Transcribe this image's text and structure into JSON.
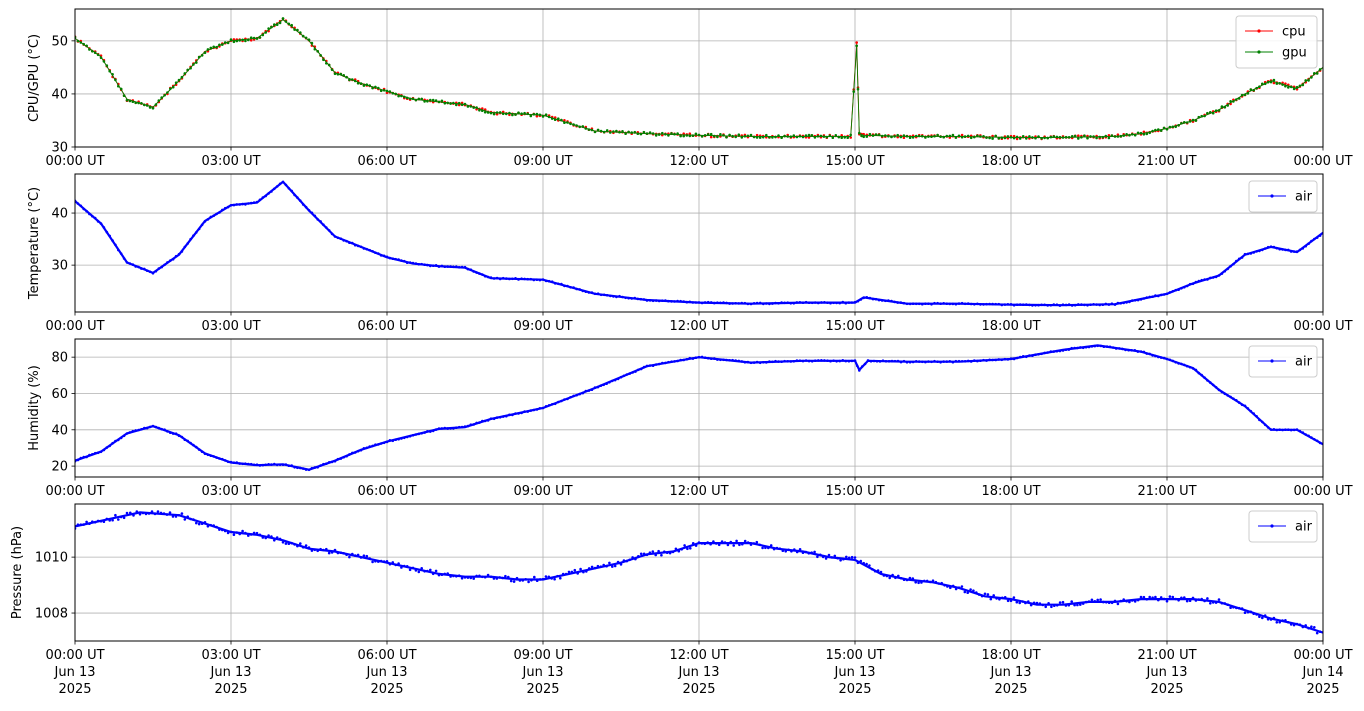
{
  "x_tick_labels": [
    "00:00 UT",
    "03:00 UT",
    "06:00 UT",
    "09:00 UT",
    "12:00 UT",
    "15:00 UT",
    "18:00 UT",
    "21:00 UT",
    "00:00 UT"
  ],
  "x_tick_dates": [
    "Jun 13",
    "Jun 13",
    "Jun 13",
    "Jun 13",
    "Jun 13",
    "Jun 13",
    "Jun 13",
    "Jun 13",
    "Jun 14"
  ],
  "x_tick_years": [
    "2025",
    "2025",
    "2025",
    "2025",
    "2025",
    "2025",
    "2025",
    "2025",
    "2025"
  ],
  "chart_data": [
    {
      "type": "line",
      "ylabel": "CPU/GPU (°C)",
      "ylim": [
        30,
        56
      ],
      "yticks": [
        30,
        40,
        50
      ],
      "grid": true,
      "legend_position": "top-right",
      "x": [
        "2025-06-13T00:00",
        "2025-06-13T00:30",
        "2025-06-13T01:00",
        "2025-06-13T01:30",
        "2025-06-13T02:00",
        "2025-06-13T02:30",
        "2025-06-13T03:00",
        "2025-06-13T03:30",
        "2025-06-13T04:00",
        "2025-06-13T04:30",
        "2025-06-13T05:00",
        "2025-06-13T05:30",
        "2025-06-13T06:00",
        "2025-06-13T06:30",
        "2025-06-13T07:00",
        "2025-06-13T07:30",
        "2025-06-13T08:00",
        "2025-06-13T09:00",
        "2025-06-13T10:00",
        "2025-06-13T11:00",
        "2025-06-13T12:00",
        "2025-06-13T13:00",
        "2025-06-13T14:00",
        "2025-06-13T14:55",
        "2025-06-13T15:02",
        "2025-06-13T15:05",
        "2025-06-13T15:10",
        "2025-06-13T16:00",
        "2025-06-13T17:00",
        "2025-06-13T18:00",
        "2025-06-13T19:00",
        "2025-06-13T20:00",
        "2025-06-13T20:30",
        "2025-06-13T21:00",
        "2025-06-13T21:30",
        "2025-06-13T22:00",
        "2025-06-13T22:30",
        "2025-06-13T23:00",
        "2025-06-13T23:30",
        "2025-06-14T00:00"
      ],
      "series": [
        {
          "name": "cpu",
          "color": "#ff0000",
          "values": [
            50.5,
            47,
            39,
            37.5,
            42.5,
            48,
            50,
            50.5,
            54,
            50,
            44,
            42,
            40.5,
            39,
            38.5,
            38,
            36.5,
            36,
            33,
            32.5,
            32.2,
            32,
            32,
            32,
            49.5,
            32.5,
            32.2,
            32,
            32,
            31.8,
            31.8,
            32,
            32.5,
            33.5,
            35,
            37,
            40,
            42.5,
            41,
            45
          ]
        },
        {
          "name": "gpu",
          "color": "#008000",
          "values": [
            50.5,
            47,
            39,
            37.5,
            42.5,
            48,
            50,
            50.5,
            54,
            50,
            44,
            42,
            40.5,
            39,
            38.5,
            38,
            36.5,
            36,
            33,
            32.5,
            32.2,
            32,
            32,
            32,
            49,
            32.5,
            32.2,
            32,
            32,
            31.8,
            31.8,
            32,
            32.5,
            33.5,
            35,
            37,
            40,
            42.5,
            41,
            45
          ]
        }
      ]
    },
    {
      "type": "line",
      "ylabel": "Temperature (°C)",
      "ylim": [
        21,
        47.5
      ],
      "yticks": [
        30,
        40
      ],
      "grid": true,
      "legend_position": "top-right",
      "x": [
        "2025-06-13T00:00",
        "2025-06-13T00:30",
        "2025-06-13T01:00",
        "2025-06-13T01:30",
        "2025-06-13T02:00",
        "2025-06-13T02:30",
        "2025-06-13T03:00",
        "2025-06-13T03:30",
        "2025-06-13T04:00",
        "2025-06-13T04:30",
        "2025-06-13T05:00",
        "2025-06-13T05:30",
        "2025-06-13T06:00",
        "2025-06-13T06:30",
        "2025-06-13T07:00",
        "2025-06-13T07:30",
        "2025-06-13T08:00",
        "2025-06-13T09:00",
        "2025-06-13T10:00",
        "2025-06-13T11:00",
        "2025-06-13T12:00",
        "2025-06-13T13:00",
        "2025-06-13T14:00",
        "2025-06-13T15:00",
        "2025-06-13T15:10",
        "2025-06-13T16:00",
        "2025-06-13T17:00",
        "2025-06-13T18:00",
        "2025-06-13T19:00",
        "2025-06-13T20:00",
        "2025-06-13T20:30",
        "2025-06-13T21:00",
        "2025-06-13T21:30",
        "2025-06-13T22:00",
        "2025-06-13T22:30",
        "2025-06-13T23:00",
        "2025-06-13T23:30",
        "2025-06-14T00:00"
      ],
      "series": [
        {
          "name": "air",
          "color": "#0000ff",
          "values": [
            42.3,
            38,
            30.5,
            28.5,
            32,
            38.5,
            41.5,
            42,
            46,
            40.5,
            35.5,
            33.5,
            31.5,
            30.3,
            29.8,
            29.5,
            27.5,
            27.2,
            24.5,
            23.3,
            22.8,
            22.6,
            22.8,
            22.8,
            23.8,
            22.6,
            22.6,
            22.4,
            22.3,
            22.5,
            23.5,
            24.5,
            26.5,
            28,
            32,
            33.5,
            32.5,
            36.2
          ]
        }
      ]
    },
    {
      "type": "line",
      "ylabel": "Humidity (%)",
      "ylim": [
        14,
        90
      ],
      "yticks": [
        20,
        40,
        60,
        80
      ],
      "grid": true,
      "legend_position": "top-right",
      "x": [
        "2025-06-13T00:00",
        "2025-06-13T00:30",
        "2025-06-13T01:00",
        "2025-06-13T01:30",
        "2025-06-13T02:00",
        "2025-06-13T02:30",
        "2025-06-13T03:00",
        "2025-06-13T03:30",
        "2025-06-13T04:00",
        "2025-06-13T04:30",
        "2025-06-13T05:00",
        "2025-06-13T05:30",
        "2025-06-13T06:00",
        "2025-06-13T06:30",
        "2025-06-13T07:00",
        "2025-06-13T07:30",
        "2025-06-13T08:00",
        "2025-06-13T09:00",
        "2025-06-13T10:00",
        "2025-06-13T10:30",
        "2025-06-13T11:00",
        "2025-06-13T12:00",
        "2025-06-13T13:00",
        "2025-06-13T14:00",
        "2025-06-13T15:00",
        "2025-06-13T15:05",
        "2025-06-13T15:15",
        "2025-06-13T16:00",
        "2025-06-13T17:00",
        "2025-06-13T18:00",
        "2025-06-13T19:00",
        "2025-06-13T19:40",
        "2025-06-13T20:30",
        "2025-06-13T21:00",
        "2025-06-13T21:30",
        "2025-06-13T22:00",
        "2025-06-13T22:30",
        "2025-06-13T23:00",
        "2025-06-13T23:30",
        "2025-06-14T00:00"
      ],
      "series": [
        {
          "name": "air",
          "color": "#0000ff",
          "values": [
            23,
            28,
            38,
            42,
            37,
            27,
            22,
            20.5,
            21,
            18,
            23,
            29,
            33.5,
            37,
            40.5,
            41.5,
            46,
            52,
            63,
            69,
            75,
            80,
            77,
            78,
            78,
            73,
            78,
            77.5,
            77.5,
            79,
            84,
            86.5,
            83,
            79,
            74,
            62,
            53,
            40,
            40,
            32
          ]
        }
      ]
    },
    {
      "type": "line",
      "ylabel": "Pressure (hPa)",
      "ylim": [
        1007,
        1011.9
      ],
      "yticks": [
        1008,
        1010
      ],
      "grid": true,
      "legend_position": "top-right",
      "x": [
        "2025-06-13T00:00",
        "2025-06-13T00:30",
        "2025-06-13T01:00",
        "2025-06-13T01:15",
        "2025-06-13T02:00",
        "2025-06-13T02:30",
        "2025-06-13T03:00",
        "2025-06-13T03:30",
        "2025-06-13T04:00",
        "2025-06-13T04:30",
        "2025-06-13T05:00",
        "2025-06-13T05:30",
        "2025-06-13T06:00",
        "2025-06-13T06:30",
        "2025-06-13T07:00",
        "2025-06-13T07:30",
        "2025-06-13T08:00",
        "2025-06-13T08:30",
        "2025-06-13T09:00",
        "2025-06-13T09:30",
        "2025-06-13T10:00",
        "2025-06-13T10:30",
        "2025-06-13T11:00",
        "2025-06-13T11:30",
        "2025-06-13T12:00",
        "2025-06-13T12:30",
        "2025-06-13T13:00",
        "2025-06-13T13:30",
        "2025-06-13T14:00",
        "2025-06-13T14:30",
        "2025-06-13T15:00",
        "2025-06-13T15:30",
        "2025-06-13T16:00",
        "2025-06-13T16:30",
        "2025-06-13T17:00",
        "2025-06-13T17:30",
        "2025-06-13T18:00",
        "2025-06-13T18:30",
        "2025-06-13T19:00",
        "2025-06-13T19:30",
        "2025-06-13T20:00",
        "2025-06-13T20:30",
        "2025-06-13T21:00",
        "2025-06-13T21:30",
        "2025-06-13T22:00",
        "2025-06-13T22:30",
        "2025-06-13T23:00",
        "2025-06-13T23:30",
        "2025-06-14T00:00"
      ],
      "series": [
        {
          "name": "air",
          "color": "#0000ff",
          "values": [
            1011.1,
            1011.3,
            1011.5,
            1011.6,
            1011.5,
            1011.2,
            1010.9,
            1010.8,
            1010.6,
            1010.3,
            1010.2,
            1010.0,
            1009.8,
            1009.6,
            1009.4,
            1009.3,
            1009.3,
            1009.2,
            1009.2,
            1009.4,
            1009.6,
            1009.8,
            1010.1,
            1010.2,
            1010.5,
            1010.5,
            1010.5,
            1010.3,
            1010.2,
            1010.0,
            1009.9,
            1009.4,
            1009.2,
            1009.1,
            1008.9,
            1008.6,
            1008.5,
            1008.3,
            1008.3,
            1008.4,
            1008.4,
            1008.5,
            1008.5,
            1008.5,
            1008.4,
            1008.1,
            1007.8,
            1007.6,
            1007.3
          ]
        }
      ]
    }
  ]
}
